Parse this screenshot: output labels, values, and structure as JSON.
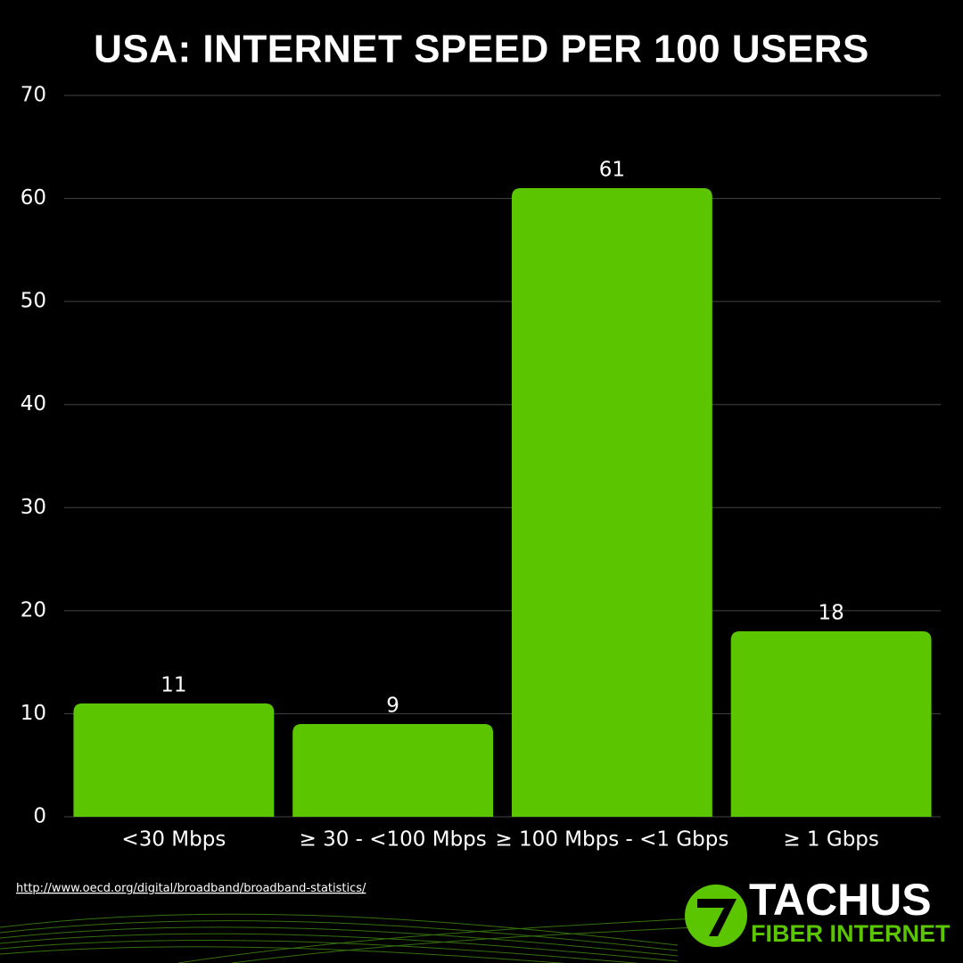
{
  "chart_data": {
    "type": "bar",
    "title": "USA: INTERNET SPEED PER 100 USERS",
    "categories": [
      "<30 Mbps",
      "≥ 30 - <100 Mbps",
      "≥ 100 Mbps - <1 Gbps",
      "≥ 1 Gbps"
    ],
    "values": [
      11,
      9,
      61,
      18
    ],
    "color": "#5bc500",
    "ylim": [
      0,
      70
    ],
    "yticks": [
      0,
      10,
      20,
      30,
      40,
      50,
      60,
      70
    ],
    "grid": true,
    "source": "http://www.oecd.org/digital/broadband/broadband-statistics/",
    "logo": {
      "name": "TACHUS",
      "tagline": "FIBER INTERNET"
    }
  }
}
